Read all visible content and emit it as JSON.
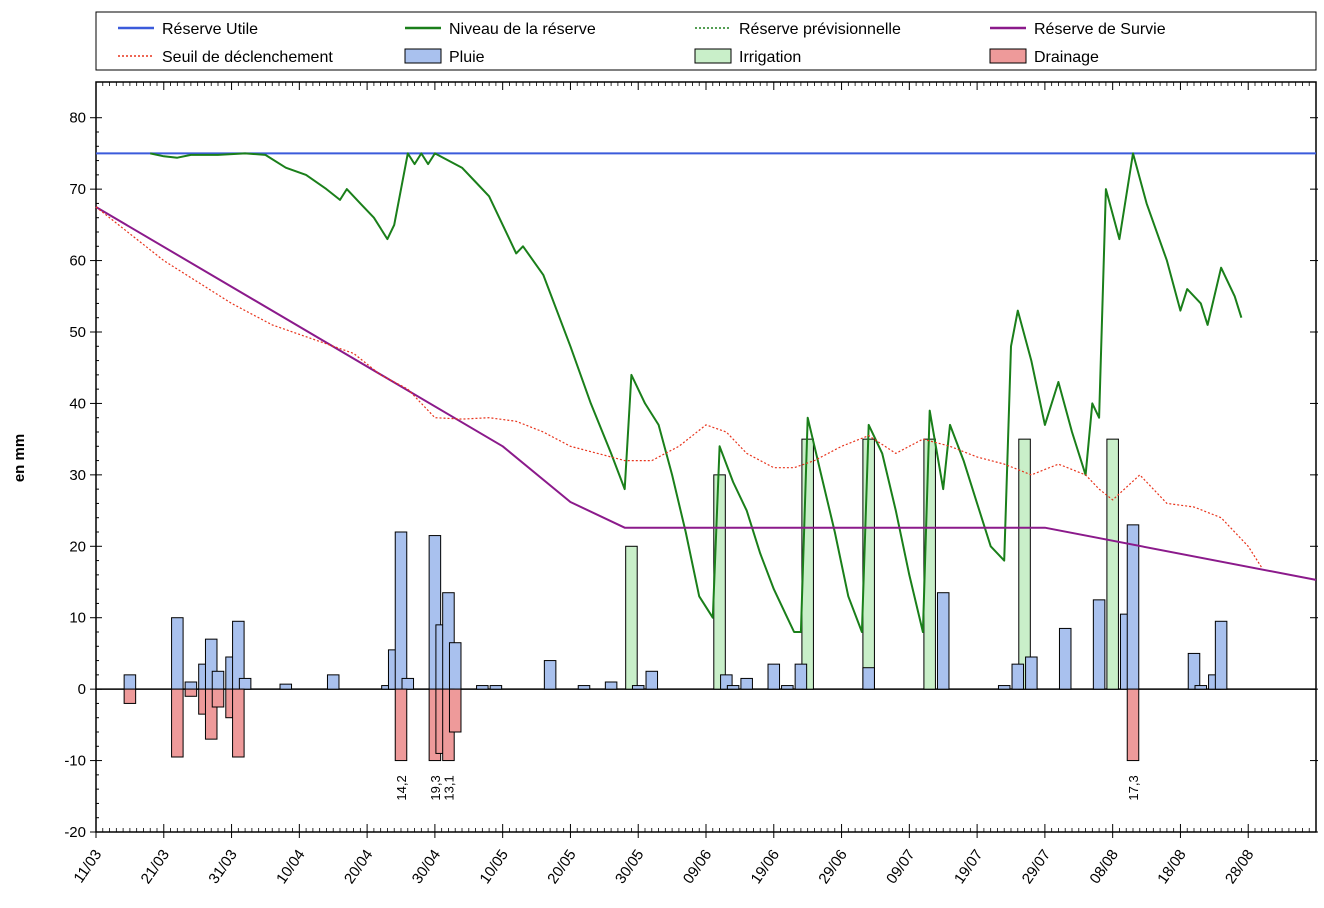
{
  "chart_data": {
    "type": "bar",
    "xlabel": "",
    "ylabel": "en mm",
    "ylim": [
      -20,
      85
    ],
    "yticks": [
      -20,
      -10,
      0,
      10,
      20,
      30,
      40,
      50,
      60,
      70,
      80
    ],
    "xlim": [
      0,
      180
    ],
    "xticks": [
      {
        "day": 0,
        "label": "11/03"
      },
      {
        "day": 10,
        "label": "21/03"
      },
      {
        "day": 20,
        "label": "31/03"
      },
      {
        "day": 30,
        "label": "10/04"
      },
      {
        "day": 40,
        "label": "20/04"
      },
      {
        "day": 50,
        "label": "30/04"
      },
      {
        "day": 60,
        "label": "10/05"
      },
      {
        "day": 70,
        "label": "20/05"
      },
      {
        "day": 80,
        "label": "30/05"
      },
      {
        "day": 90,
        "label": "09/06"
      },
      {
        "day": 100,
        "label": "19/06"
      },
      {
        "day": 110,
        "label": "29/06"
      },
      {
        "day": 120,
        "label": "09/07"
      },
      {
        "day": 130,
        "label": "19/07"
      },
      {
        "day": 140,
        "label": "29/07"
      },
      {
        "day": 150,
        "label": "08/08"
      },
      {
        "day": 160,
        "label": "18/08"
      },
      {
        "day": 170,
        "label": "28/08"
      }
    ],
    "grid": false,
    "legend_position": "top",
    "legend": [
      {
        "label": "Réserve Utile",
        "kind": "line",
        "color": "#3b5bdb",
        "dash": ""
      },
      {
        "label": "Niveau de la réserve",
        "kind": "line",
        "color": "#1a7f1a",
        "dash": ""
      },
      {
        "label": "Réserve prévisionnelle",
        "kind": "line",
        "color": "#1a7f1a",
        "dash": "2,2"
      },
      {
        "label": "Réserve de Survie",
        "kind": "line",
        "color": "#8b1a8b",
        "dash": ""
      },
      {
        "label": "Seuil de déclenchement",
        "kind": "line",
        "color": "#e8341c",
        "dash": "2,2"
      },
      {
        "label": "Pluie",
        "kind": "bar",
        "color": "#a9c1ee"
      },
      {
        "label": "Irrigation",
        "kind": "bar",
        "color": "#c9efc9"
      },
      {
        "label": "Drainage",
        "kind": "bar",
        "color": "#ee9a9a"
      }
    ],
    "series": [
      {
        "name": "Réserve Utile",
        "kind": "line",
        "color": "#3b5bdb",
        "points": [
          [
            0,
            75
          ],
          [
            180,
            75
          ]
        ]
      },
      {
        "name": "Niveau de la réserve",
        "kind": "line",
        "color": "#1a7f1a",
        "points": [
          [
            8,
            75
          ],
          [
            10,
            74.6
          ],
          [
            12,
            74.4
          ],
          [
            14,
            74.8
          ],
          [
            18,
            74.8
          ],
          [
            22,
            75
          ],
          [
            25,
            74.8
          ],
          [
            28,
            73
          ],
          [
            31,
            72
          ],
          [
            34,
            70
          ],
          [
            36,
            68.5
          ],
          [
            37,
            70
          ],
          [
            39,
            68
          ],
          [
            41,
            66
          ],
          [
            43,
            63
          ],
          [
            44,
            65
          ],
          [
            46,
            75
          ],
          [
            47,
            73.5
          ],
          [
            48,
            75
          ],
          [
            49,
            73.5
          ],
          [
            50,
            75
          ],
          [
            54,
            73
          ],
          [
            56,
            71
          ],
          [
            58,
            69
          ],
          [
            60,
            65
          ],
          [
            62,
            61
          ],
          [
            63,
            62
          ],
          [
            66,
            58
          ],
          [
            70,
            48
          ],
          [
            73,
            40
          ],
          [
            76,
            33
          ],
          [
            78,
            28
          ],
          [
            79,
            44
          ],
          [
            81,
            40
          ],
          [
            83,
            37
          ],
          [
            85,
            30
          ],
          [
            87,
            22
          ],
          [
            89,
            13
          ],
          [
            91,
            10
          ],
          [
            92,
            34
          ],
          [
            94,
            29
          ],
          [
            96,
            25
          ],
          [
            98,
            19
          ],
          [
            100,
            14
          ],
          [
            102,
            10
          ],
          [
            103,
            8
          ],
          [
            104,
            8
          ],
          [
            105,
            38
          ],
          [
            107,
            30
          ],
          [
            109,
            22
          ],
          [
            111,
            13
          ],
          [
            113,
            8
          ],
          [
            114,
            37
          ],
          [
            116,
            33
          ],
          [
            118,
            25
          ],
          [
            120,
            16
          ],
          [
            122,
            8
          ],
          [
            123,
            39
          ],
          [
            125,
            28
          ],
          [
            126,
            37
          ],
          [
            128,
            32
          ],
          [
            130,
            26
          ],
          [
            132,
            20
          ],
          [
            134,
            18
          ],
          [
            135,
            48
          ],
          [
            136,
            53
          ],
          [
            138,
            46
          ],
          [
            140,
            37
          ],
          [
            142,
            43
          ],
          [
            144,
            36
          ],
          [
            146,
            30
          ],
          [
            147,
            40
          ],
          [
            148,
            38
          ],
          [
            149,
            70
          ],
          [
            151,
            63
          ],
          [
            153,
            75
          ],
          [
            155,
            68
          ],
          [
            158,
            60
          ],
          [
            160,
            53
          ],
          [
            161,
            56
          ],
          [
            163,
            54
          ],
          [
            164,
            51
          ],
          [
            166,
            59
          ],
          [
            168,
            55
          ],
          [
            169,
            52
          ]
        ]
      },
      {
        "name": "Réserve de Survie",
        "kind": "line",
        "color": "#8b1a8b",
        "points": [
          [
            0,
            67.5
          ],
          [
            60,
            34
          ],
          [
            70,
            26.2
          ],
          [
            78,
            22.6
          ],
          [
            140,
            22.6
          ],
          [
            180,
            15.3
          ]
        ]
      },
      {
        "name": "Seuil de déclenchement",
        "kind": "line",
        "color": "#e8341c",
        "dash": "2,2",
        "points": [
          [
            0,
            67.5
          ],
          [
            10,
            60
          ],
          [
            20,
            54
          ],
          [
            26,
            51
          ],
          [
            32,
            49
          ],
          [
            38,
            47
          ],
          [
            42,
            44
          ],
          [
            46,
            42
          ],
          [
            50,
            38
          ],
          [
            54,
            37.8
          ],
          [
            58,
            38
          ],
          [
            62,
            37.5
          ],
          [
            66,
            36
          ],
          [
            70,
            34
          ],
          [
            74,
            33
          ],
          [
            78,
            32
          ],
          [
            82,
            32
          ],
          [
            86,
            34
          ],
          [
            90,
            37
          ],
          [
            93,
            36
          ],
          [
            96,
            33
          ],
          [
            100,
            31
          ],
          [
            103,
            31
          ],
          [
            106,
            32
          ],
          [
            110,
            34
          ],
          [
            114,
            35.5
          ],
          [
            118,
            33
          ],
          [
            122,
            35
          ],
          [
            126,
            34
          ],
          [
            130,
            32.5
          ],
          [
            134,
            31.5
          ],
          [
            138,
            30
          ],
          [
            142,
            31.5
          ],
          [
            146,
            30
          ],
          [
            148,
            28
          ],
          [
            150,
            26.5
          ],
          [
            154,
            30
          ],
          [
            158,
            26
          ],
          [
            162,
            25.5
          ],
          [
            166,
            24
          ],
          [
            170,
            20
          ],
          [
            172,
            17
          ]
        ]
      }
    ],
    "bars": {
      "width_days": 1.7,
      "Pluie": [
        [
          5,
          2
        ],
        [
          12,
          10
        ],
        [
          14,
          1
        ],
        [
          16,
          3.5
        ],
        [
          17,
          7
        ],
        [
          18,
          2.5
        ],
        [
          20,
          4.5
        ],
        [
          21,
          9.5
        ],
        [
          22,
          1.5
        ],
        [
          28,
          0.7
        ],
        [
          35,
          2
        ],
        [
          43,
          0.5
        ],
        [
          44,
          5.5
        ],
        [
          45,
          22
        ],
        [
          46,
          1.5
        ],
        [
          50,
          21.5
        ],
        [
          51,
          9
        ],
        [
          52,
          13.5
        ],
        [
          53,
          6.5
        ],
        [
          57,
          0.5
        ],
        [
          59,
          0.5
        ],
        [
          67,
          4
        ],
        [
          72,
          0.5
        ],
        [
          76,
          1
        ],
        [
          80,
          0.5
        ],
        [
          82,
          2.5
        ],
        [
          93,
          2
        ],
        [
          94,
          0.5
        ],
        [
          96,
          1.5
        ],
        [
          100,
          3.5
        ],
        [
          102,
          0.5
        ],
        [
          104,
          3.5
        ],
        [
          114,
          3
        ],
        [
          125,
          13.5
        ],
        [
          134,
          0.5
        ],
        [
          136,
          3.5
        ],
        [
          138,
          4.5
        ],
        [
          143,
          8.5
        ],
        [
          148,
          12.5
        ],
        [
          152,
          10.5
        ],
        [
          153,
          23
        ],
        [
          162,
          5
        ],
        [
          163,
          0.5
        ],
        [
          165,
          2
        ],
        [
          166,
          9.5
        ]
      ],
      "Irrigation": [
        [
          79,
          20
        ],
        [
          92,
          30
        ],
        [
          105,
          35
        ],
        [
          114,
          35
        ],
        [
          123,
          35
        ],
        [
          137,
          35
        ],
        [
          150,
          35
        ]
      ],
      "Drainage": [
        [
          5,
          -2
        ],
        [
          12,
          -9.5
        ],
        [
          14,
          -1
        ],
        [
          16,
          -3.5
        ],
        [
          17,
          -7
        ],
        [
          18,
          -2.5
        ],
        [
          20,
          -4
        ],
        [
          21,
          -9.5
        ],
        [
          45,
          -10
        ],
        [
          50,
          -10
        ],
        [
          51,
          -9
        ],
        [
          52,
          -10
        ],
        [
          53,
          -6
        ],
        [
          153,
          -10
        ]
      ]
    },
    "drainage_labels": [
      {
        "day": 45,
        "text": "14,2"
      },
      {
        "day": 50,
        "text": "19,3"
      },
      {
        "day": 52,
        "text": "13,1"
      },
      {
        "day": 153,
        "text": "17,3"
      }
    ]
  }
}
